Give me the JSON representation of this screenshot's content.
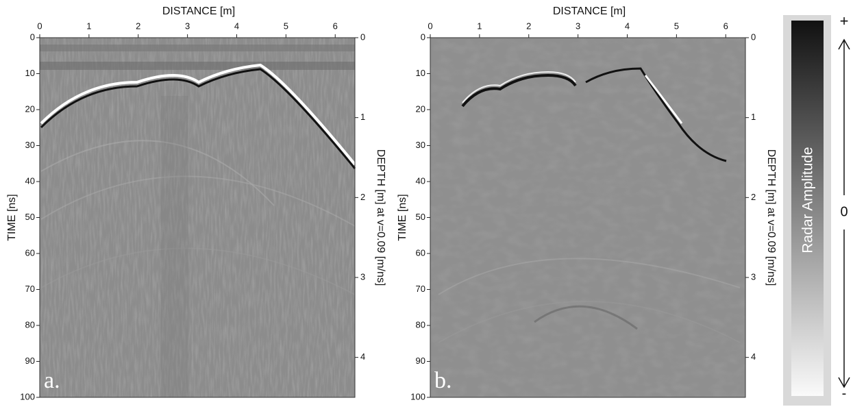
{
  "chart_data": [
    {
      "type": "radargram",
      "panel_label": "a.",
      "x_label": "DISTANCE [m]",
      "y_label": "TIME [ns]",
      "y2_label": "DEPTH [m] at v=0.09 [m/ns]",
      "xlim": [
        0,
        6.4
      ],
      "xticks": [
        0,
        1,
        2,
        3,
        4,
        5,
        6
      ],
      "ylim": [
        0,
        100
      ],
      "yticks": [
        0,
        10,
        20,
        30,
        40,
        50,
        60,
        70,
        80,
        90,
        100
      ],
      "y_inverted": true,
      "y2lim": [
        0,
        4.5
      ],
      "y2ticks": [
        0,
        1,
        2,
        3,
        4
      ]
    },
    {
      "type": "radargram",
      "panel_label": "b.",
      "x_label": "DISTANCE [m]",
      "y_label": "TIME [ns]",
      "y2_label": "DEPTH [m] at v=0.09 [m/ns]",
      "xlim": [
        0,
        6.4
      ],
      "xticks": [
        0,
        1,
        2,
        3,
        4,
        5,
        6
      ],
      "ylim": [
        0,
        100
      ],
      "yticks": [
        0,
        10,
        20,
        30,
        40,
        50,
        60,
        70,
        80,
        90,
        100
      ],
      "y_inverted": true,
      "y2lim": [
        0,
        4.5
      ],
      "y2ticks": [
        0,
        1,
        2,
        3,
        4
      ]
    }
  ],
  "colorbar": {
    "label": "Radar Amplitude",
    "plus": "+",
    "zero": "0",
    "minus": "-"
  }
}
